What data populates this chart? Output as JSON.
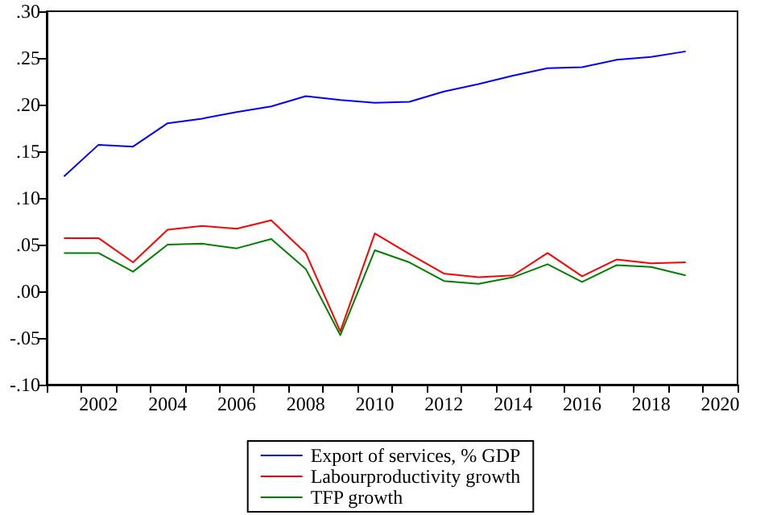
{
  "chart_data": {
    "type": "line",
    "categories": [
      null,
      "2002",
      null,
      "2004",
      null,
      "2006",
      null,
      "2008",
      null,
      "2010",
      null,
      "2012",
      null,
      "2014",
      null,
      "2016",
      null,
      "2018",
      null,
      "2020"
    ],
    "series": [
      {
        "name": "Export of services, % GDP",
        "color": "#0000ff",
        "values": [
          0.123,
          0.157,
          0.155,
          0.18,
          0.185,
          0.192,
          0.198,
          0.209,
          0.205,
          0.202,
          0.203,
          0.214,
          0.222,
          0.231,
          0.239,
          0.24,
          0.248,
          0.251,
          0.257,
          null
        ]
      },
      {
        "name": "Labourproductivity growth",
        "color": "#ff0000",
        "values": [
          0.057,
          0.057,
          0.031,
          0.066,
          0.07,
          0.067,
          0.076,
          0.041,
          -0.043,
          0.062,
          0.04,
          0.019,
          0.015,
          0.017,
          0.041,
          0.016,
          0.034,
          0.03,
          0.031,
          null
        ]
      },
      {
        "name": "TFP growth",
        "color": "#008000",
        "values": [
          0.041,
          0.041,
          0.021,
          0.05,
          0.051,
          0.046,
          0.056,
          0.024,
          -0.047,
          0.044,
          0.031,
          0.011,
          0.008,
          0.015,
          0.029,
          0.01,
          0.028,
          0.026,
          0.017,
          null
        ]
      }
    ],
    "ylim": [
      -0.1,
      0.3
    ],
    "yticks": [
      {
        "value": -0.1,
        "label": "-.10"
      },
      {
        "value": -0.05,
        "label": "-.05"
      },
      {
        "value": 0,
        "label": ".00"
      },
      {
        "value": 0.05,
        "label": ".05"
      },
      {
        "value": 0.1,
        "label": ".10"
      },
      {
        "value": 0.15,
        "label": ".15"
      },
      {
        "value": 0.2,
        "label": ".20"
      },
      {
        "value": 0.25,
        "label": ".25"
      },
      {
        "value": 0.3,
        "label": ".30"
      }
    ],
    "grid": false,
    "legend": "bottom",
    "marker": "none",
    "line_style": "solid"
  }
}
